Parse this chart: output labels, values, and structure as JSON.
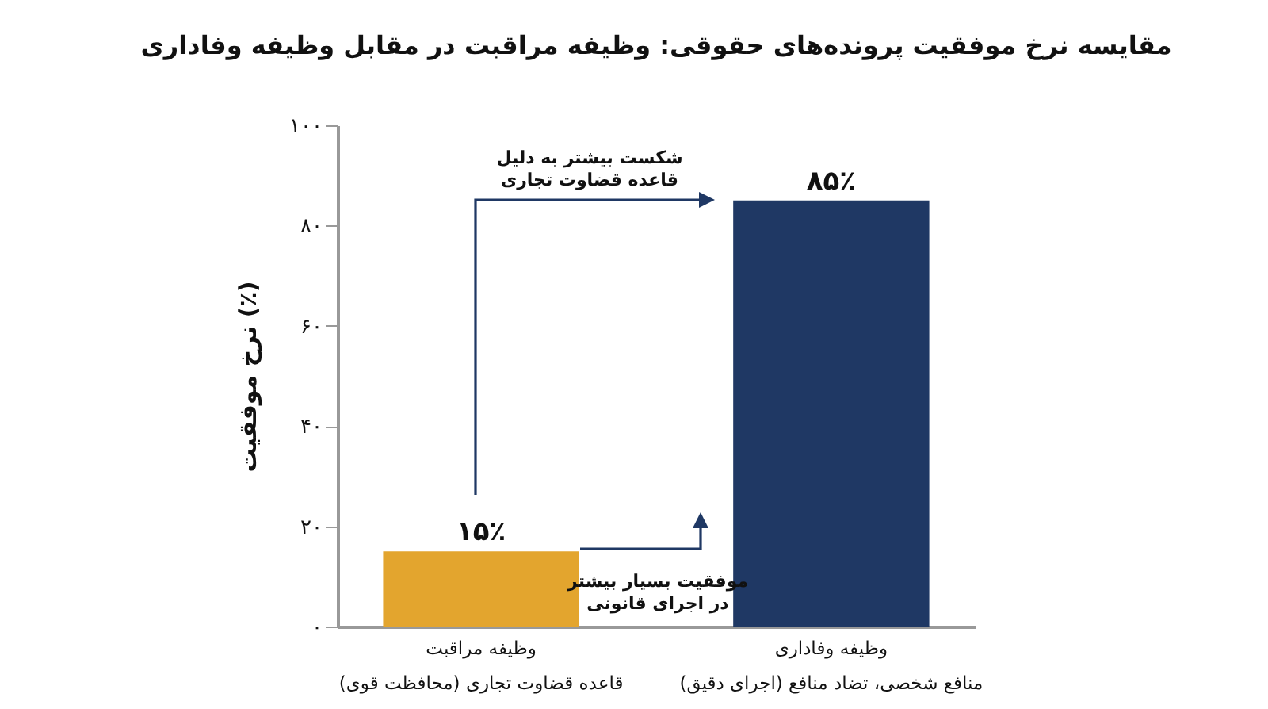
{
  "chart_data": {
    "type": "bar",
    "title": "مقایسه نرخ موفقیت پرونده‌های حقوقی: وظیفه مراقبت در مقابل وظیفه وفاداری",
    "ylabel": "نرخ موفقیت (٪)",
    "categories": [
      "وظیفه مراقبت\nقاعده قضاوت تجاری (محافظت قوی)",
      "وظیفه وفاداری\nمنافع شخصی، تضاد منافع (اجرای دقیق)"
    ],
    "values": [
      15,
      85
    ],
    "colors": [
      "#e3a52e",
      "#1f3864"
    ],
    "value_labels": [
      "۱۵٪",
      "۸۵٪"
    ],
    "ylim": [
      0,
      100
    ],
    "yticks": [
      {
        "value": 0,
        "label": "۰"
      },
      {
        "value": 20,
        "label": "۲۰"
      },
      {
        "value": 40,
        "label": "۴۰"
      },
      {
        "value": 60,
        "label": "۶۰"
      },
      {
        "value": 80,
        "label": "۸۰"
      },
      {
        "value": 100,
        "label": "۱۰۰"
      }
    ],
    "annotations": [
      "شکست بیشتر به دلیل\nقاعده قضاوت تجاری",
      "موفقیت بسیار بیشتر\nدر اجرای قانونی"
    ],
    "grid": false
  }
}
